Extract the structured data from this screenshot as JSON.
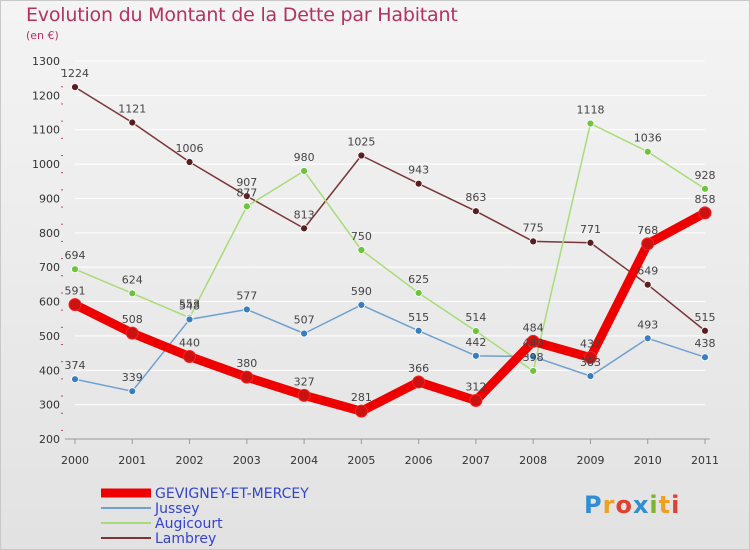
{
  "title": "Evolution du Montant de la Dette par Habitant",
  "unit": "(en €)",
  "logo": [
    "P",
    "r",
    "o",
    "x",
    "i",
    "t",
    "i"
  ],
  "chart_data": {
    "type": "line",
    "x": [
      "2000",
      "2001",
      "2002",
      "2003",
      "2004",
      "2005",
      "2006",
      "2007",
      "2008",
      "2009",
      "2010",
      "2011"
    ],
    "ylim": [
      200,
      1300
    ],
    "yticks": [
      200,
      300,
      400,
      500,
      600,
      700,
      800,
      900,
      1000,
      1100,
      1200,
      1300
    ],
    "grid": true,
    "legend_position": "bottom-left",
    "series": [
      {
        "name": "GEVIGNEY-ET-MERCEY",
        "color": "#ee0000",
        "marker": "#cc1111",
        "width": 9,
        "r": 6,
        "values": [
          591,
          508,
          440,
          380,
          327,
          281,
          366,
          312,
          484,
          437,
          768,
          858
        ]
      },
      {
        "name": "Jussey",
        "color": "#6fa0d0",
        "marker": "#3a7ec0",
        "width": 1.5,
        "r": 3.5,
        "values": [
          374,
          339,
          548,
          577,
          507,
          590,
          515,
          442,
          440,
          383,
          493,
          438
        ]
      },
      {
        "name": "Augicourt",
        "color": "#a8dc78",
        "marker": "#6cc43a",
        "width": 1.5,
        "r": 3.5,
        "values": [
          694,
          624,
          553,
          877,
          980,
          750,
          625,
          514,
          398,
          1118,
          1036,
          928
        ]
      },
      {
        "name": "Lambrey",
        "color": "#7a3636",
        "marker": "#5a1e1e",
        "width": 1.5,
        "r": 3.5,
        "values": [
          1224,
          1121,
          1006,
          907,
          813,
          1025,
          943,
          863,
          775,
          771,
          649,
          515
        ]
      }
    ]
  }
}
